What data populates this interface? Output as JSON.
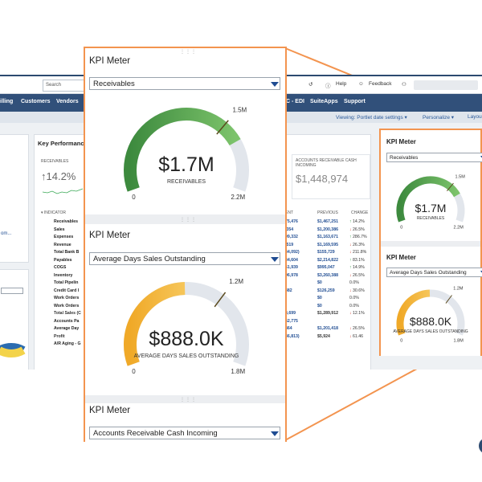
{
  "dashboard": {
    "search_placeholder": "Search",
    "topbar": {
      "help": "Help",
      "feedback": "Feedback"
    },
    "nav": [
      "illing",
      "Customers",
      "Vendors",
      "C - EDI",
      "SuiteApps",
      "Support"
    ],
    "subbar": {
      "viewing": "Viewing: Portlet date settings",
      "personalize": "Personalize",
      "layout": "Layou"
    },
    "left_link": "om...",
    "key_perf": {
      "title": "Key Performanc",
      "receivables_label": "RECEIVABLES",
      "receivables_change": "14.2%",
      "ar_cash_label": "ACCOUNTS RECEIVABLE CASH INCOMING",
      "ar_cash_value": "$1,448,974",
      "col_indicator": "INDICATOR",
      "col_current": "ENT",
      "col_previous": "PREVIOUS",
      "col_change": "CHANGE",
      "indicators": [
        "Receivables",
        "Sales",
        "Expenses",
        "Revenue",
        "Total Bank B",
        "Payables",
        "COGS",
        "Inventory",
        "Total Pipelin",
        "Credit Card I",
        "Work Orders",
        "Work Orders",
        "Total Sales (C",
        "Accounts Pa",
        "Average Day",
        "Profit",
        "A/R Aging - G"
      ],
      "current": [
        "75,476",
        ",354",
        "99,332",
        ",519",
        "34,092)",
        "34,604",
        "51,939",
        "96,978",
        "",
        "382",
        "",
        "",
        "3,699",
        "52,775",
        "864",
        "36,813)",
        ""
      ],
      "previous": [
        "$1,467,251",
        "$1,200,386",
        "$1,163,671",
        "$1,169,595",
        "$155,729",
        "$2,214,822",
        "$995,047",
        "$3,260,388",
        "$0",
        "$126,259",
        "$0",
        "$0",
        "$1,289,912",
        "",
        "$1,201,418",
        "$5,924",
        ""
      ],
      "change": [
        "14.2%",
        "26.5%",
        "286.7%",
        "26.3%",
        "211.8%",
        "83.1%",
        "14.9%",
        "26.5%",
        "0.0%",
        "30.6%",
        "0.0%",
        "0.0%",
        "12.1%",
        "",
        "26.5%",
        "61.46",
        ""
      ],
      "change_dir": [
        "up",
        "dn",
        "up",
        "dn",
        "dn",
        "up",
        "up",
        "dn",
        "none",
        "dn",
        "none",
        "none",
        "dn",
        "none",
        "dn",
        "dn",
        "none"
      ]
    }
  },
  "big_callout": {
    "meters": [
      {
        "title": "KPI Meter",
        "select": "Receivables",
        "value": "$1.7M",
        "label": "RECEIVABLES",
        "min": "0",
        "max": "2.2M",
        "threshold": "1.5M",
        "color": "#3d8a3e",
        "color_light": "#7cc36b",
        "fraction": 0.773,
        "threshold_fraction": 0.682
      },
      {
        "title": "KPI Meter",
        "select": "Average Days Sales Outstanding",
        "value": "$888.0K",
        "label": "AVERAGE DAYS SALES OUTSTANDING",
        "min": "0",
        "max": "1.8M",
        "threshold": "1.2M",
        "color": "#f0a928",
        "color_light": "#f6c65a",
        "fraction": 0.493,
        "threshold_fraction": 0.667
      },
      {
        "title": "KPI Meter",
        "select": "Accounts Receivable Cash Incoming"
      }
    ]
  },
  "small_callout": {
    "meters": [
      {
        "title": "KPI Meter",
        "select": "Receivables",
        "value": "$1.7M",
        "label": "RECEIVABLES",
        "min": "0",
        "max": "2.2M",
        "threshold": "1.5M",
        "color": "#3d8a3e",
        "color_light": "#7cc36b",
        "fraction": 0.773,
        "threshold_fraction": 0.682
      },
      {
        "title": "KPI Meter",
        "select": "Average Days Sales Outstanding",
        "value": "$888.0K",
        "label": "AVERAGE DAYS SALES OUTSTANDING",
        "min": "0",
        "max": "1.8M",
        "threshold": "1.2M",
        "color": "#f0a928",
        "color_light": "#f6c65a",
        "fraction": 0.493,
        "threshold_fraction": 0.667
      }
    ]
  }
}
